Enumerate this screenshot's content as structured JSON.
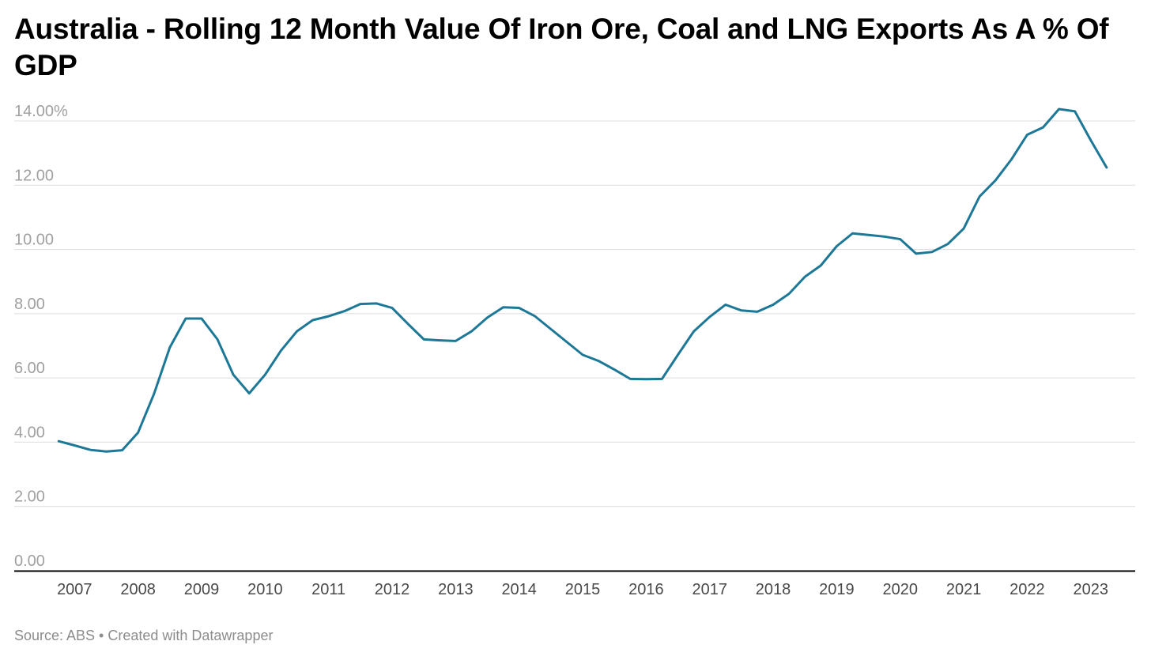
{
  "chart_data": {
    "type": "line",
    "title": "Australia - Rolling 12 Month Value Of Iron Ore, Coal and LNG Exports As A % Of GDP",
    "xlabel": "",
    "ylabel": "",
    "x_ticks": [
      "2007",
      "2008",
      "2009",
      "2010",
      "2011",
      "2012",
      "2013",
      "2014",
      "2015",
      "2016",
      "2017",
      "2018",
      "2019",
      "2020",
      "2021",
      "2022",
      "2023"
    ],
    "y_ticks": [
      "0.00",
      "2.00",
      "4.00",
      "6.00",
      "8.00",
      "10.00",
      "12.00",
      "14.00%"
    ],
    "ylim": [
      0,
      14
    ],
    "xlim": [
      2006.55,
      2024.2
    ],
    "grid": true,
    "color": "#1d7897",
    "series": [
      {
        "x": [
          2007.25,
          2007.5,
          2007.75,
          2008.0,
          2008.25,
          2008.5,
          2008.75,
          2009.0,
          2009.25,
          2009.5,
          2009.75,
          2010.0,
          2010.25,
          2010.5,
          2010.75,
          2011.0,
          2011.25,
          2011.5,
          2011.75,
          2012.0,
          2012.25,
          2012.5,
          2012.75,
          2013.0,
          2013.25,
          2013.5,
          2013.75,
          2014.0,
          2014.25,
          2014.5,
          2014.75,
          2015.0,
          2015.25,
          2015.5,
          2015.75,
          2016.0,
          2016.25,
          2016.5,
          2016.75,
          2017.0,
          2017.25,
          2017.5,
          2017.75,
          2018.0,
          2018.25,
          2018.5,
          2018.75,
          2019.0,
          2019.25,
          2019.5,
          2019.75,
          2020.0,
          2020.25,
          2020.5,
          2020.75,
          2021.0,
          2021.25,
          2021.5,
          2021.75,
          2022.0,
          2022.25,
          2022.5,
          2022.75,
          2023.0,
          2023.25,
          2023.5,
          2023.75
        ],
        "values": [
          4.03,
          3.9,
          3.76,
          3.71,
          3.75,
          4.3,
          5.5,
          6.95,
          7.85,
          7.85,
          7.2,
          6.1,
          5.52,
          6.1,
          6.85,
          7.45,
          7.8,
          7.92,
          8.08,
          8.3,
          8.32,
          8.18,
          7.68,
          7.2,
          7.17,
          7.15,
          7.45,
          7.88,
          8.2,
          8.18,
          7.92,
          7.52,
          7.12,
          6.72,
          6.53,
          6.26,
          5.97,
          5.96,
          5.97,
          6.72,
          7.45,
          7.9,
          8.28,
          8.1,
          8.06,
          8.28,
          8.62,
          9.15,
          9.5,
          10.1,
          10.5,
          10.45,
          10.4,
          10.32,
          9.87,
          9.92,
          10.17,
          10.65,
          11.65,
          12.15,
          12.8,
          13.57,
          13.8,
          14.37,
          14.3,
          13.4,
          12.55
        ]
      }
    ],
    "source": "Source: ABS • Created with Datawrapper"
  }
}
